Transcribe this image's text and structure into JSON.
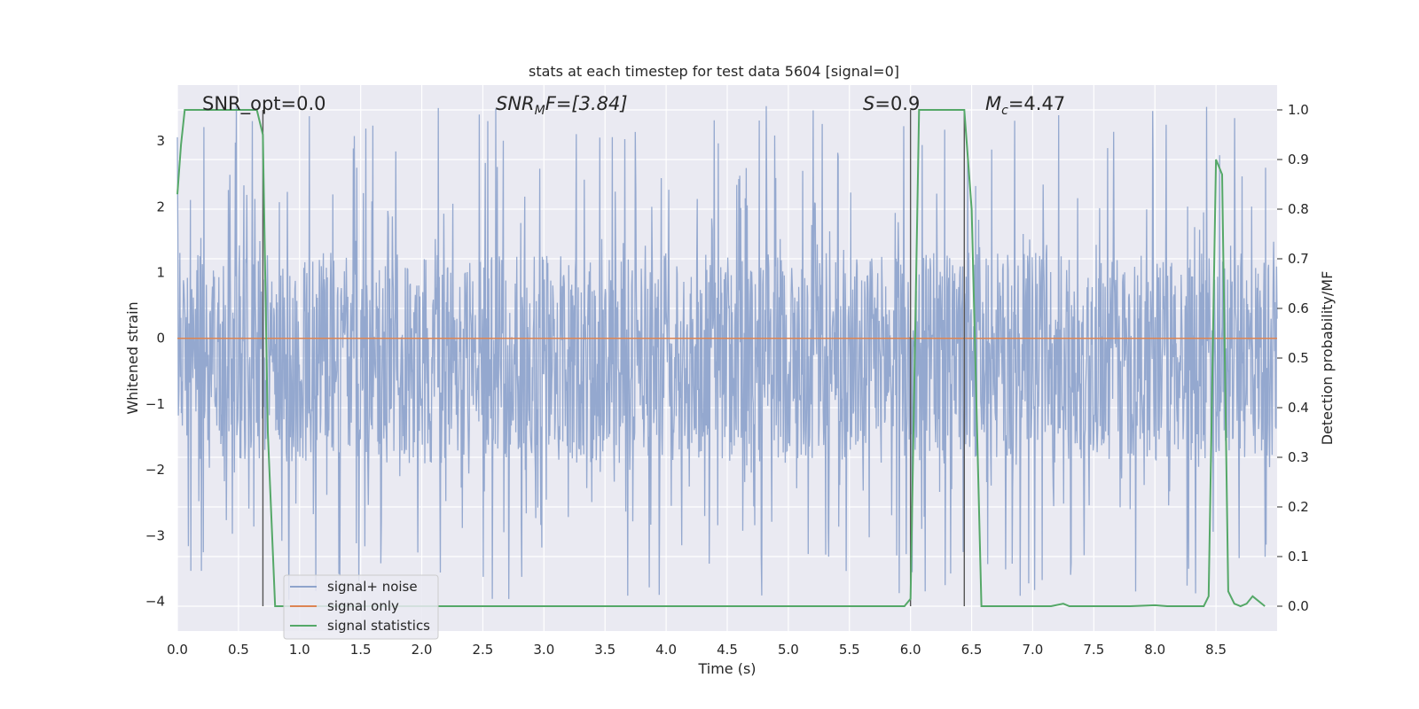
{
  "chart_data": {
    "type": "line",
    "title": "stats at each timestep for test data 5604 [signal=0]",
    "xlabel": "Time (s)",
    "ylabel": "Whitened strain",
    "ylabel_right": "Detection probability/MF",
    "xlim": [
      0.0,
      9.0
    ],
    "ylim": [
      -4.45,
      3.85
    ],
    "ylim_right": [
      -0.05,
      1.05
    ],
    "xticks": [
      "0.0",
      "0.5",
      "1.0",
      "1.5",
      "2.0",
      "2.5",
      "3.0",
      "3.5",
      "4.0",
      "4.5",
      "5.0",
      "5.5",
      "6.0",
      "6.5",
      "7.0",
      "7.5",
      "8.0",
      "8.5"
    ],
    "yticks": [
      "3",
      "2",
      "1",
      "0",
      "−1",
      "−2",
      "−3",
      "−4"
    ],
    "yticks_right": [
      "1.0",
      "0.9",
      "0.8",
      "0.7",
      "0.6",
      "0.5",
      "0.4",
      "0.3",
      "0.2",
      "0.1",
      "0.0"
    ],
    "grid": true,
    "legend_position": "lower-left",
    "annotations": {
      "snr_opt": "SNR_opt=0.0",
      "snr_mf": {
        "base": "SNR",
        "sub": "M",
        "rest": "F=[3.84]"
      },
      "s_value": {
        "sym": "S",
        "rest": "=0.9"
      },
      "mc_value": {
        "sym": "M",
        "sub": "c",
        "rest": "=4.47"
      }
    },
    "vertical_lines_x": [
      0.7,
      6.0,
      6.44
    ],
    "series": [
      {
        "name": "signal+ noise",
        "color": "#8fa4cc",
        "axis": "left",
        "description": "whitened noise sampled densely over 0–9 s, amplitude roughly within −4 to 3.5",
        "envelope": {
          "typical_low": -1.9,
          "typical_high": 1.3,
          "min": -4.0,
          "max": 3.55
        }
      },
      {
        "name": "signal only",
        "color": "#dd8452",
        "axis": "left",
        "x": [
          0.0,
          9.0
        ],
        "y": [
          0.0,
          0.0
        ]
      },
      {
        "name": "signal statistics",
        "color": "#55a868",
        "axis": "right",
        "x": [
          0.0,
          0.03,
          0.06,
          0.1,
          0.3,
          0.65,
          0.7,
          0.74,
          0.8,
          1.0,
          3.0,
          5.0,
          5.95,
          6.0,
          6.07,
          6.2,
          6.4,
          6.44,
          6.5,
          6.58,
          6.65,
          7.0,
          7.15,
          7.25,
          7.3,
          7.5,
          7.8,
          8.0,
          8.1,
          8.3,
          8.4,
          8.44,
          8.5,
          8.55,
          8.6,
          8.65,
          8.7,
          8.75,
          8.8,
          8.9
        ],
        "y": [
          0.83,
          0.93,
          1.0,
          1.0,
          1.0,
          1.0,
          0.95,
          0.35,
          0.0,
          0.0,
          0.0,
          0.0,
          0.0,
          0.015,
          1.0,
          1.0,
          1.0,
          1.0,
          0.8,
          0.0,
          0.0,
          0.0,
          0.0,
          0.005,
          0.0,
          0.0,
          0.0,
          0.002,
          0.0,
          0.0,
          0.0,
          0.02,
          0.9,
          0.87,
          0.03,
          0.005,
          0.0,
          0.005,
          0.02,
          0.0
        ]
      }
    ]
  }
}
